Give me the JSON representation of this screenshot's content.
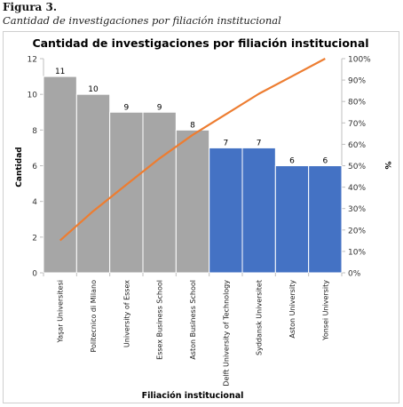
{
  "figure": {
    "label": "Figura 3.",
    "caption": "Cantidad de investigaciones por filiación institucional"
  },
  "chart_data": {
    "type": "bar",
    "title": "Cantidad de investigaciones por filiación institucional",
    "xlabel": "Filiación institucional",
    "ylabel": "Cantidad",
    "y2label": "%",
    "categories": [
      "Yaşar Universitesi",
      "Politecnico di Milano",
      "University of Essex",
      "Essex Business School",
      "Aston Business School",
      "Delft University of Technology",
      "Syddansk Universitet",
      "Aston University",
      "Yonsei University"
    ],
    "series": [
      {
        "type": "bar",
        "values": [
          11,
          10,
          9,
          9,
          8,
          7,
          7,
          6,
          6
        ],
        "colors": [
          "#a6a6a6",
          "#a6a6a6",
          "#a6a6a6",
          "#a6a6a6",
          "#a6a6a6",
          "#4472c4",
          "#4472c4",
          "#4472c4",
          "#4472c4"
        ]
      },
      {
        "type": "line",
        "axis": "secondary",
        "values": [
          15.1,
          28.8,
          41.1,
          53.4,
          64.4,
          74.0,
          83.6,
          91.8,
          100
        ],
        "color": "#ed7d31"
      }
    ],
    "ylim": [
      0,
      12
    ],
    "yticks": [
      "0",
      "2",
      "4",
      "6",
      "8",
      "10",
      "12"
    ],
    "y2lim": [
      0,
      100
    ],
    "y2ticks": [
      "0%",
      "10%",
      "20%",
      "30%",
      "40%",
      "50%",
      "60%",
      "70%",
      "80%",
      "90%",
      "100%"
    ],
    "data_labels": [
      "11",
      "10",
      "9",
      "9",
      "8",
      "7",
      "7",
      "6",
      "6"
    ],
    "grid": false,
    "legend": "none"
  }
}
